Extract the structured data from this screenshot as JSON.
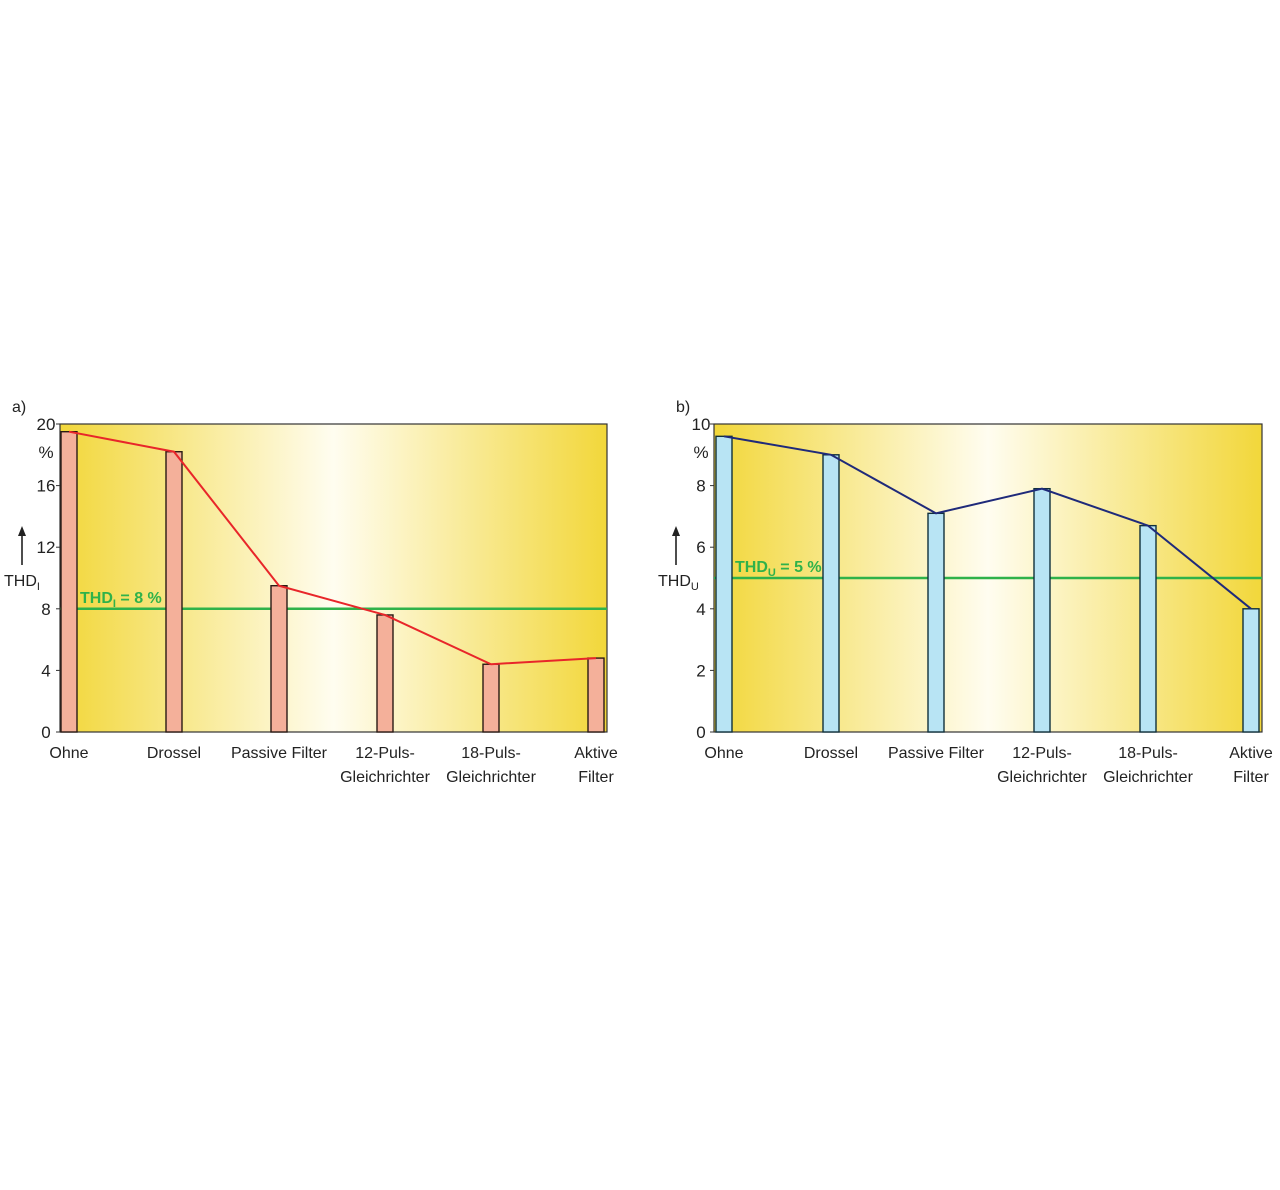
{
  "colors": {
    "bg_edge": "#f2d73a",
    "bg_center": "#fffdf0",
    "threshold": "#2fb24a",
    "bar_a": "#f4b09a",
    "bar_a_stroke": "#2a1a14",
    "line_a": "#e8262a",
    "bar_b": "#b8e4f4",
    "bar_b_stroke": "#10303c",
    "line_b": "#1f2a7a"
  },
  "chart_data": [
    {
      "panel_label": "a)",
      "type": "bar",
      "overlay": "line",
      "categories": [
        [
          "Ohne"
        ],
        [
          "Drossel"
        ],
        [
          "Passive Filter"
        ],
        [
          "12-Puls-",
          "Gleichrichter"
        ],
        [
          "18-Puls-",
          "Gleichrichter"
        ],
        [
          "Aktive",
          "Filter"
        ]
      ],
      "values": [
        19.5,
        18.2,
        9.5,
        7.6,
        4.4,
        4.8
      ],
      "ylabel_main": "THD",
      "ylabel_sub": "I",
      "unit": "%",
      "ylim": [
        0,
        20
      ],
      "yticks": [
        0,
        4,
        8,
        12,
        16,
        20
      ],
      "threshold": {
        "value": 8,
        "label_main": "THD",
        "label_sub": "I",
        "label_rest": " = 8 %"
      }
    },
    {
      "panel_label": "b)",
      "type": "bar",
      "overlay": "line",
      "categories": [
        [
          "Ohne"
        ],
        [
          "Drossel"
        ],
        [
          "Passive Filter"
        ],
        [
          "12-Puls-",
          "Gleichrichter"
        ],
        [
          "18-Puls-",
          "Gleichrichter"
        ],
        [
          "Aktive",
          "Filter"
        ]
      ],
      "values": [
        9.6,
        9.0,
        7.1,
        7.9,
        6.7,
        4.0
      ],
      "ylabel_main": "THD",
      "ylabel_sub": "U",
      "unit": "%",
      "ylim": [
        0,
        10
      ],
      "yticks": [
        0,
        2,
        4,
        6,
        8,
        10
      ],
      "threshold": {
        "value": 5,
        "label_main": "THD",
        "label_sub": "U",
        "label_rest": " = 5 %"
      }
    }
  ]
}
